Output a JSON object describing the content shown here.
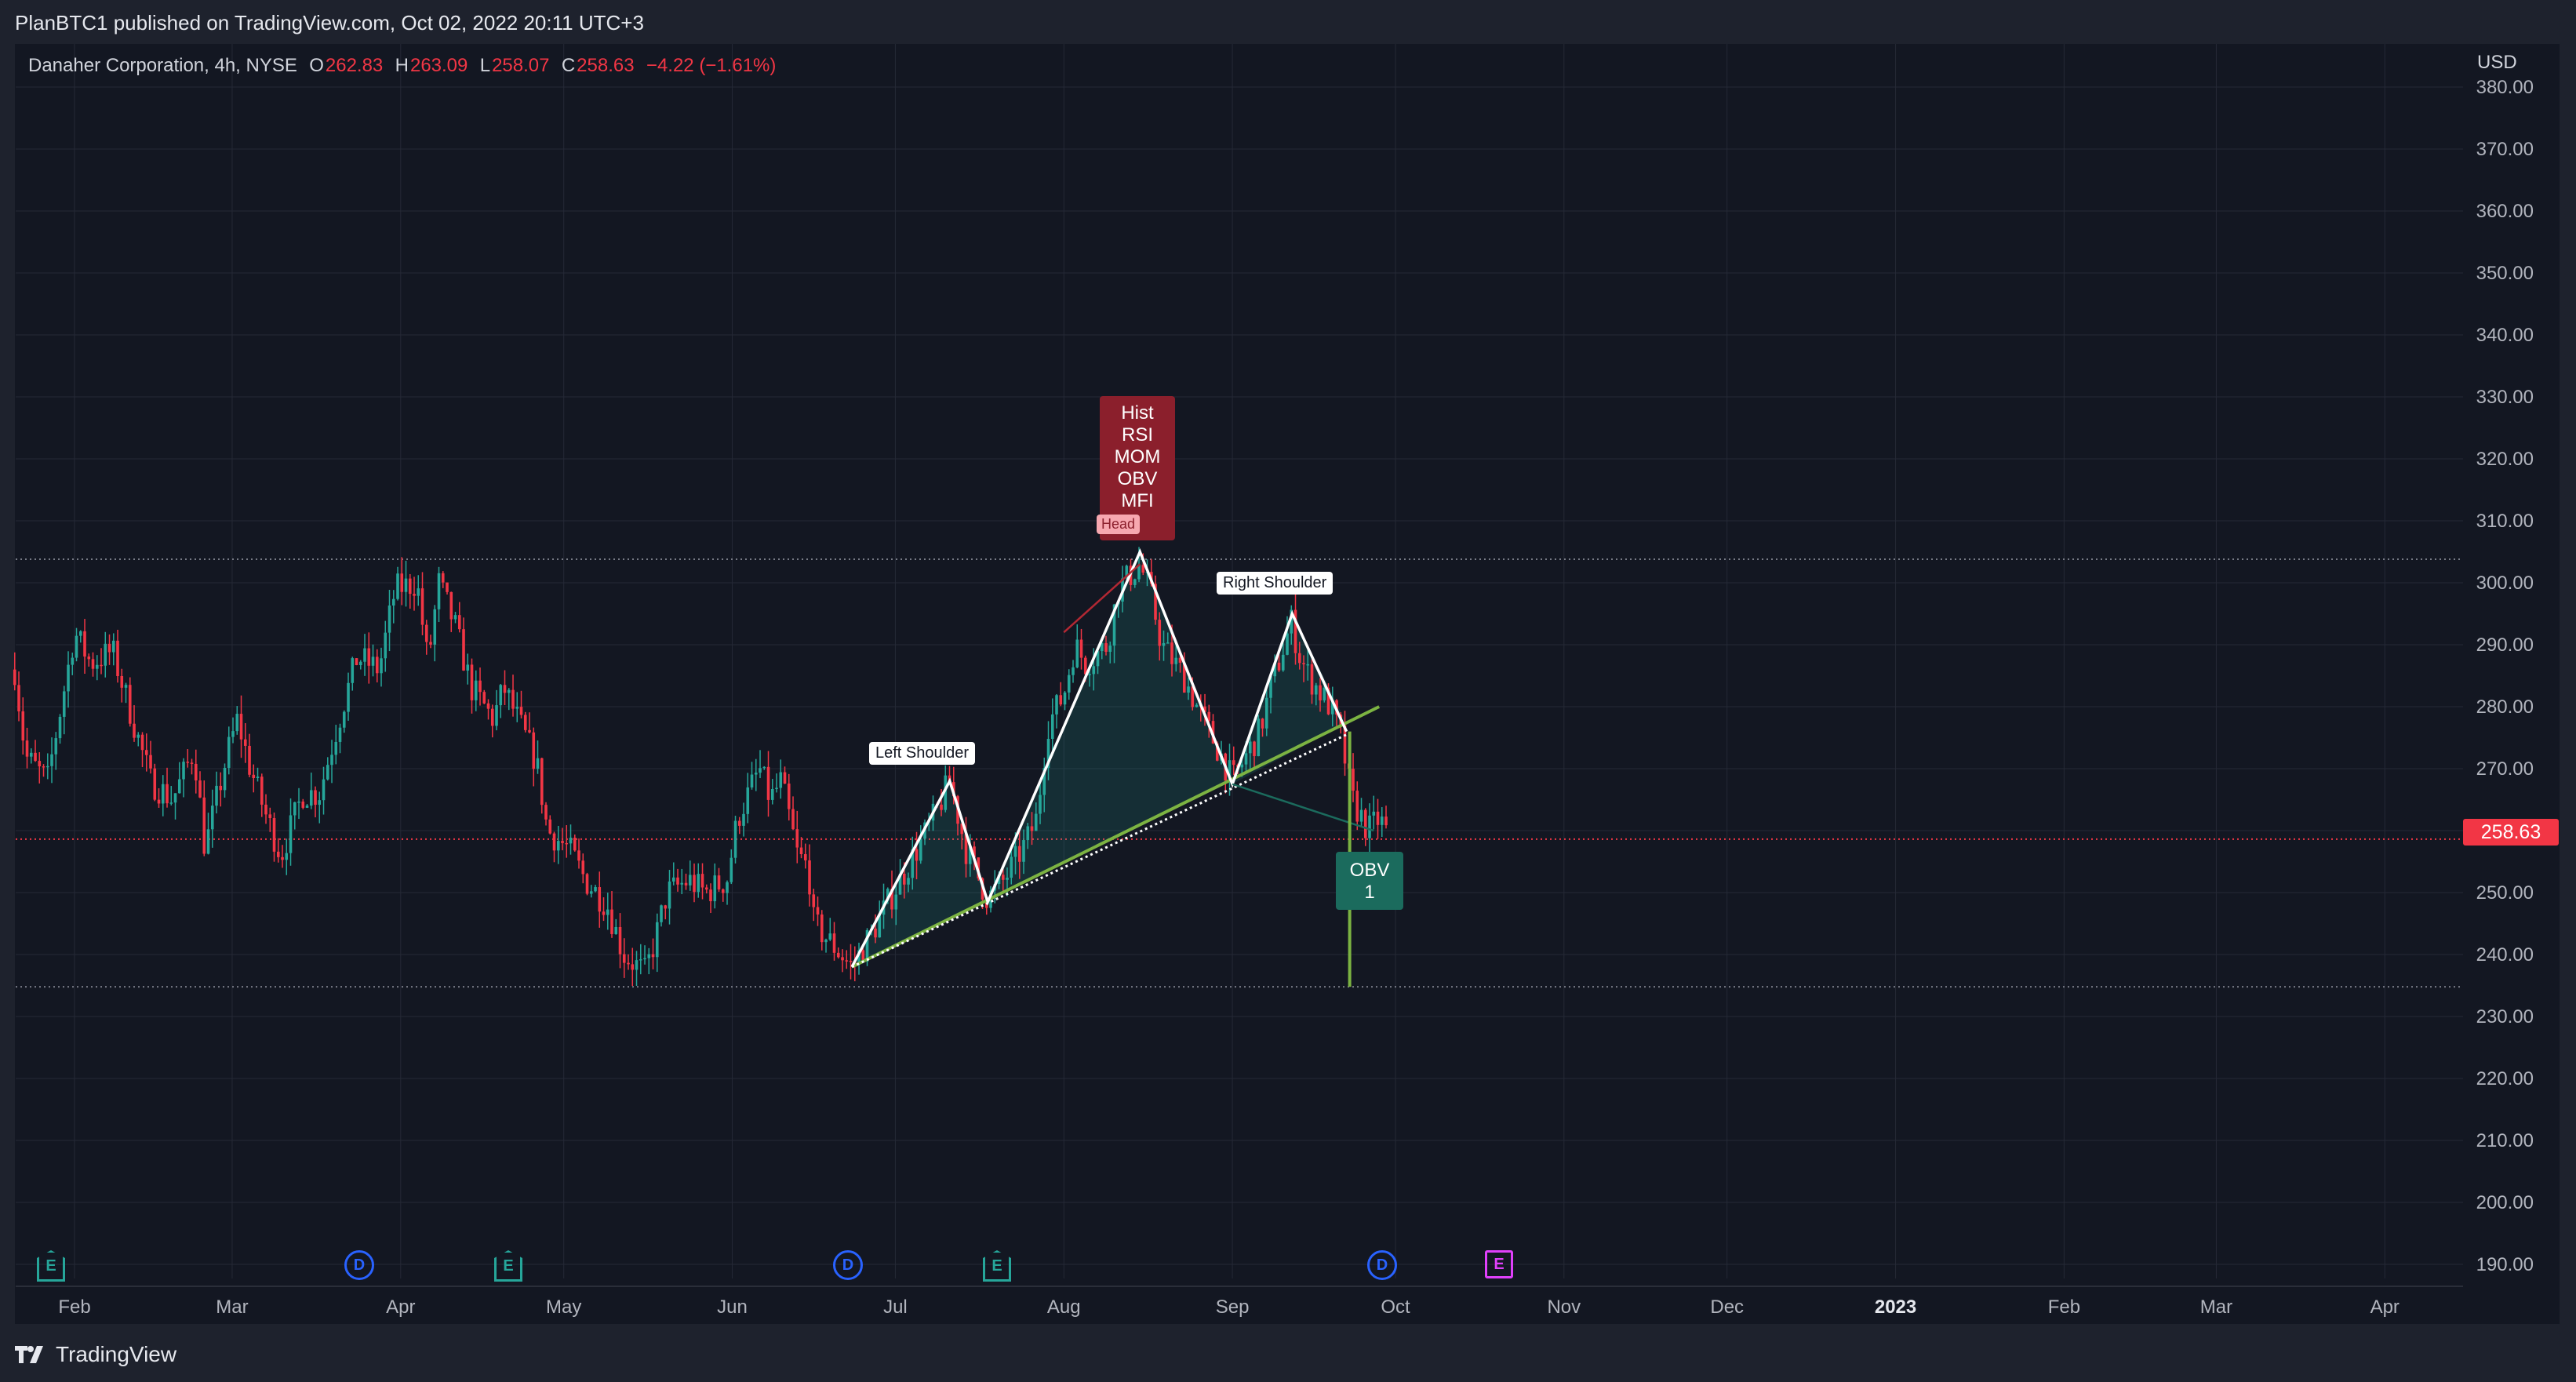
{
  "publisher": "PlanBTC1 published on TradingView.com, Oct 02, 2022 20:11 UTC+3",
  "legend": {
    "symbol": "Danaher Corporation, 4h, NYSE",
    "o_key": "O",
    "o_val": "262.83",
    "h_key": "H",
    "h_val": "263.09",
    "l_key": "L",
    "l_val": "258.07",
    "c_key": "C",
    "c_val": "258.63",
    "change": "−4.22 (−1.61%)"
  },
  "currency": "USD",
  "last_price": "258.63",
  "brand": "TradingView",
  "annotations": {
    "left_shoulder": "Left Shoulder",
    "head": "Head",
    "right_shoulder": "Right Shoulder",
    "divergence": [
      "Hist",
      "RSI",
      "MOM",
      "OBV",
      "MFI"
    ],
    "obv_label": "OBV",
    "obv_count": "1"
  },
  "events": [
    {
      "kind": "E",
      "date": "Jan 27"
    },
    {
      "kind": "D",
      "date": "Mar 25"
    },
    {
      "kind": "E",
      "date": "Apr 21"
    },
    {
      "kind": "D",
      "date": "Jun 24"
    },
    {
      "kind": "E",
      "date": "Jul 21"
    },
    {
      "kind": "D",
      "date": "Sep 27"
    },
    {
      "kind": "E",
      "date": "Oct 20"
    }
  ],
  "colors": {
    "up": "#26a69a",
    "down": "#f23645",
    "background": "#131722",
    "grid": "#252936",
    "trendline": "#7cb342",
    "divergence_box": "#8b1f2c",
    "obv_box": "#1b6b5d"
  },
  "chart_data": {
    "type": "candlestick",
    "timeframe": "4h",
    "x_tick_labels": [
      "Feb",
      "Mar",
      "Apr",
      "May",
      "Jun",
      "Jul",
      "Aug",
      "Sep",
      "Oct",
      "Nov",
      "Dec",
      "2023",
      "Feb",
      "Mar",
      "Apr"
    ],
    "y_tick_labels": [
      "190.00",
      "200.00",
      "210.00",
      "220.00",
      "230.00",
      "240.00",
      "250.00",
      "260.00",
      "270.00",
      "280.00",
      "290.00",
      "300.00",
      "310.00",
      "320.00",
      "330.00",
      "340.00",
      "350.00",
      "360.00",
      "370.00",
      "380.00"
    ],
    "y_range": [
      186,
      382
    ],
    "x_range": [
      "2022-01-20",
      "2023-04-30"
    ],
    "grid": true,
    "price_path": [
      [
        "2022-01-20",
        286
      ],
      [
        "2022-01-22",
        272
      ],
      [
        "2022-01-26",
        268
      ],
      [
        "2022-01-31",
        292
      ],
      [
        "2022-02-03",
        287
      ],
      [
        "2022-02-07",
        289
      ],
      [
        "2022-02-10",
        280
      ],
      [
        "2022-02-14",
        268
      ],
      [
        "2022-02-18",
        265
      ],
      [
        "2022-02-22",
        273
      ],
      [
        "2022-02-24",
        257
      ],
      [
        "2022-02-28",
        272
      ],
      [
        "2022-03-02",
        278
      ],
      [
        "2022-03-04",
        271
      ],
      [
        "2022-03-07",
        263
      ],
      [
        "2022-03-10",
        256
      ],
      [
        "2022-03-14",
        266
      ],
      [
        "2022-03-17",
        266
      ],
      [
        "2022-03-21",
        279
      ],
      [
        "2022-03-24",
        288
      ],
      [
        "2022-03-28",
        286
      ],
      [
        "2022-03-31",
        299
      ],
      [
        "2022-04-04",
        300
      ],
      [
        "2022-04-06",
        287
      ],
      [
        "2022-04-08",
        300
      ],
      [
        "2022-04-11",
        293
      ],
      [
        "2022-04-14",
        283
      ],
      [
        "2022-04-18",
        278
      ],
      [
        "2022-04-20",
        283
      ],
      [
        "2022-04-22",
        279
      ],
      [
        "2022-04-26",
        271
      ],
      [
        "2022-04-28",
        260
      ],
      [
        "2022-05-02",
        257
      ],
      [
        "2022-05-05",
        252
      ],
      [
        "2022-05-09",
        248
      ],
      [
        "2022-05-12",
        240
      ],
      [
        "2022-05-16",
        237
      ],
      [
        "2022-05-18",
        243
      ],
      [
        "2022-05-20",
        250
      ],
      [
        "2022-05-24",
        252
      ],
      [
        "2022-05-27",
        250
      ],
      [
        "2022-05-31",
        252
      ],
      [
        "2022-06-02",
        262
      ],
      [
        "2022-06-06",
        270
      ],
      [
        "2022-06-08",
        265
      ],
      [
        "2022-06-10",
        268
      ],
      [
        "2022-06-13",
        256
      ],
      [
        "2022-06-15",
        254
      ],
      [
        "2022-06-16",
        245
      ],
      [
        "2022-06-20",
        241
      ],
      [
        "2022-06-23",
        238
      ],
      [
        "2022-06-27",
        244
      ],
      [
        "2022-06-30",
        249
      ],
      [
        "2022-07-05",
        257
      ],
      [
        "2022-07-08",
        262
      ],
      [
        "2022-07-11",
        268
      ],
      [
        "2022-07-14",
        257
      ],
      [
        "2022-07-18",
        249
      ],
      [
        "2022-07-21",
        252
      ],
      [
        "2022-07-25",
        258
      ],
      [
        "2022-07-27",
        262
      ],
      [
        "2022-07-29",
        277
      ],
      [
        "2022-08-01",
        282
      ],
      [
        "2022-08-03",
        290
      ],
      [
        "2022-08-05",
        287
      ],
      [
        "2022-08-09",
        290
      ],
      [
        "2022-08-11",
        299
      ],
      [
        "2022-08-15",
        303
      ],
      [
        "2022-08-17",
        298
      ],
      [
        "2022-08-19",
        290
      ],
      [
        "2022-08-23",
        285
      ],
      [
        "2022-08-26",
        279
      ],
      [
        "2022-08-30",
        272
      ],
      [
        "2022-09-01",
        268
      ],
      [
        "2022-09-06",
        276
      ],
      [
        "2022-09-08",
        283
      ],
      [
        "2022-09-12",
        294
      ],
      [
        "2022-09-13",
        289
      ],
      [
        "2022-09-15",
        285
      ],
      [
        "2022-09-19",
        280
      ],
      [
        "2022-09-21",
        275
      ],
      [
        "2022-09-23",
        265
      ],
      [
        "2022-09-26",
        260
      ],
      [
        "2022-09-28",
        262
      ],
      [
        "2022-09-30",
        258.63
      ]
    ],
    "last": {
      "open": 262.83,
      "high": 263.09,
      "low": 258.07,
      "close": 258.63,
      "change": -4.22,
      "change_pct": -1.61
    },
    "horizontal_levels": [
      303.8,
      234.8
    ],
    "pattern": {
      "name": "Head and Shoulders",
      "points": [
        [
          "2022-06-23",
          238
        ],
        [
          "2022-07-11",
          268
        ],
        [
          "2022-07-18",
          248.5
        ],
        [
          "2022-08-15",
          305
        ],
        [
          "2022-09-01",
          267.5
        ],
        [
          "2022-09-12",
          295
        ],
        [
          "2022-09-22",
          276
        ]
      ],
      "neckline": [
        [
          "2022-06-23",
          238
        ],
        [
          "2022-09-28",
          280
        ]
      ]
    }
  }
}
